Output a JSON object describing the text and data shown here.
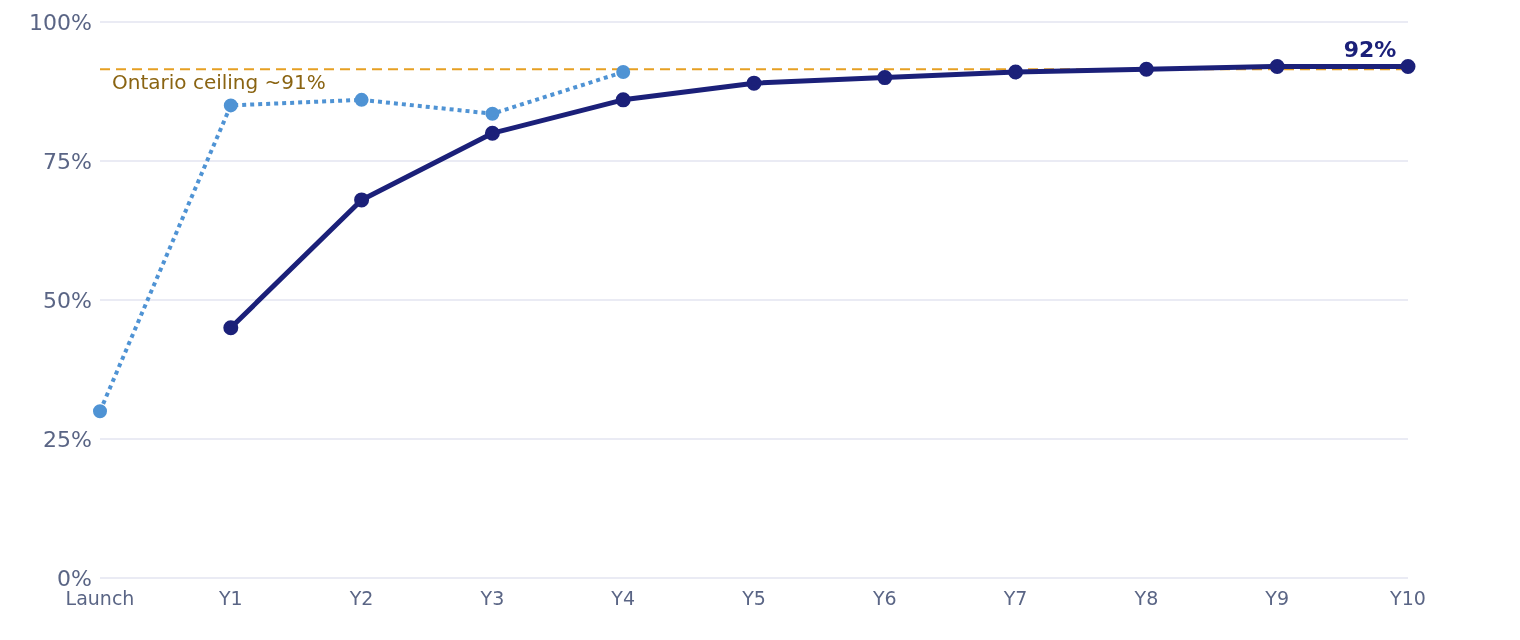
{
  "chart_data": {
    "type": "line",
    "categories": [
      "Launch",
      "Y1",
      "Y2",
      "Y3",
      "Y4",
      "Y5",
      "Y6",
      "Y7",
      "Y8",
      "Y9",
      "Y10"
    ],
    "series": [
      {
        "color": "#4f93d4",
        "line_style": "dotted",
        "values": [
          30,
          85,
          86,
          83.5,
          91,
          null,
          null,
          null,
          null,
          null,
          null
        ]
      },
      {
        "color": "#1b2079",
        "line_style": "solid",
        "values": [
          null,
          45,
          68,
          80,
          86,
          89,
          90,
          91,
          91.5,
          92,
          92
        ]
      }
    ],
    "ylim": [
      0,
      100
    ],
    "yticks": [
      {
        "value": 0,
        "label": "0%"
      },
      {
        "value": 25,
        "label": "25%"
      },
      {
        "value": 50,
        "label": "50%"
      },
      {
        "value": 75,
        "label": "75%"
      },
      {
        "value": 100,
        "label": "100%"
      }
    ],
    "grid": "y",
    "marker": "circle",
    "legend": false,
    "ref_lines": [
      {
        "axis": "y",
        "value": 91.5,
        "label": "Ontario ceiling ~91%",
        "color": "#e6a023",
        "line_style": "dashed"
      }
    ],
    "annotations": [
      {
        "text": "92%",
        "x": "Y10",
        "y": 92
      }
    ]
  }
}
